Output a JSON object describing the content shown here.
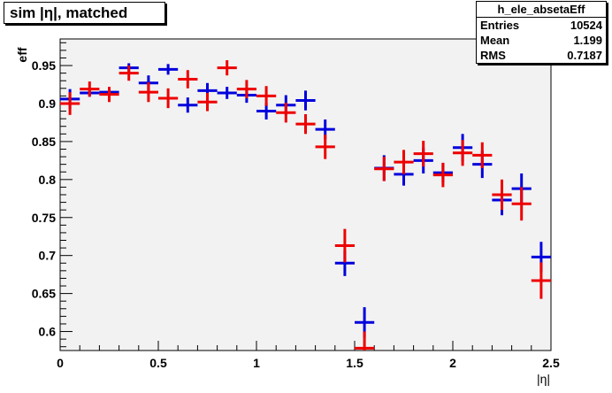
{
  "title": "sim |η|, matched",
  "stats": {
    "name": "h_ele_absetaEff",
    "rows": [
      {
        "label": "Entries",
        "value": "10524"
      },
      {
        "label": "Mean",
        "value": "1.199"
      },
      {
        "label": "RMS",
        "value": "0.7187"
      }
    ]
  },
  "chart_data": {
    "type": "scatter",
    "xlabel": "|η|",
    "ylabel": "eff",
    "xlim": [
      0,
      2.5
    ],
    "ylim": [
      0.575,
      0.985
    ],
    "x_ticks": [
      0,
      0.5,
      1,
      1.5,
      2,
      2.5
    ],
    "x_tick_labels": [
      "0",
      "0.5",
      "1",
      "1.5",
      "2",
      "2.5"
    ],
    "y_ticks": [
      0.6,
      0.65,
      0.7,
      0.75,
      0.8,
      0.85,
      0.9,
      0.95
    ],
    "y_tick_labels": [
      "0.6",
      "0.65",
      "0.7",
      "0.75",
      "0.8",
      "0.85",
      "0.9",
      "0.95"
    ],
    "bin_width": 0.1,
    "grid": false,
    "series": [
      {
        "color": "#0000dd",
        "x": [
          0.05,
          0.15,
          0.25,
          0.35,
          0.45,
          0.55,
          0.65,
          0.75,
          0.85,
          0.95,
          1.05,
          1.15,
          1.25,
          1.35,
          1.45,
          1.55,
          1.65,
          1.75,
          1.85,
          1.95,
          2.05,
          2.15,
          2.25,
          2.35,
          2.45
        ],
        "y": [
          0.906,
          0.914,
          0.915,
          0.947,
          0.927,
          0.945,
          0.898,
          0.917,
          0.914,
          0.911,
          0.89,
          0.898,
          0.904,
          0.866,
          0.69,
          0.612,
          0.815,
          0.807,
          0.825,
          0.809,
          0.842,
          0.82,
          0.773,
          0.788,
          0.698
        ],
        "err": [
          0.013,
          0.005,
          0.006,
          0.006,
          0.01,
          0.007,
          0.01,
          0.01,
          0.008,
          0.01,
          0.011,
          0.013,
          0.013,
          0.013,
          0.017,
          0.02,
          0.017,
          0.015,
          0.017,
          0.013,
          0.018,
          0.018,
          0.02,
          0.02,
          0.02
        ]
      },
      {
        "color": "#ee0000",
        "x": [
          0.05,
          0.15,
          0.25,
          0.35,
          0.45,
          0.55,
          0.65,
          0.75,
          0.85,
          0.95,
          1.05,
          1.15,
          1.25,
          1.35,
          1.45,
          1.55,
          1.65,
          1.75,
          1.85,
          1.95,
          2.05,
          2.15,
          2.25,
          2.35,
          2.45
        ],
        "y": [
          0.9,
          0.919,
          0.912,
          0.94,
          0.915,
          0.907,
          0.932,
          0.902,
          0.947,
          0.919,
          0.91,
          0.888,
          0.873,
          0.843,
          0.713,
          0.578,
          0.814,
          0.823,
          0.834,
          0.806,
          0.835,
          0.832,
          0.78,
          0.768,
          0.667
        ],
        "err": [
          0.015,
          0.01,
          0.01,
          0.01,
          0.013,
          0.013,
          0.012,
          0.012,
          0.01,
          0.012,
          0.013,
          0.013,
          0.013,
          0.016,
          0.022,
          0.022,
          0.016,
          0.016,
          0.017,
          0.016,
          0.017,
          0.017,
          0.02,
          0.022,
          0.024
        ]
      }
    ]
  }
}
